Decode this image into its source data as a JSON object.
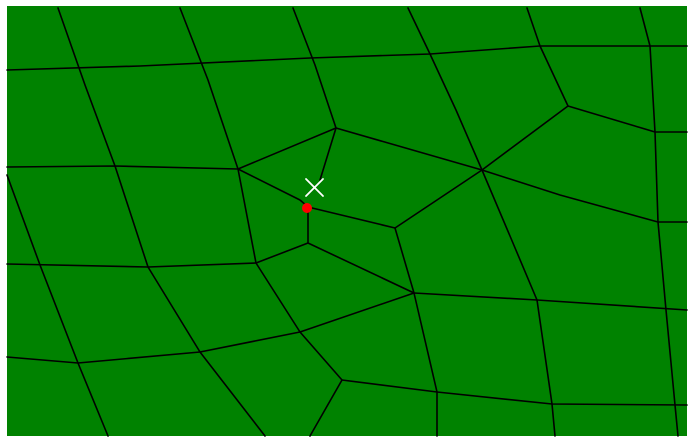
{
  "canvas": {
    "background": "#ffffff",
    "mesh_fill": "#008200",
    "edge_color": "#000000"
  },
  "cursor": {
    "icon": "crosshair-x-cursor-icon",
    "color": "#ffffff"
  },
  "selected_node": {
    "icon": "node-marker-icon",
    "color": "#ff0000"
  }
}
